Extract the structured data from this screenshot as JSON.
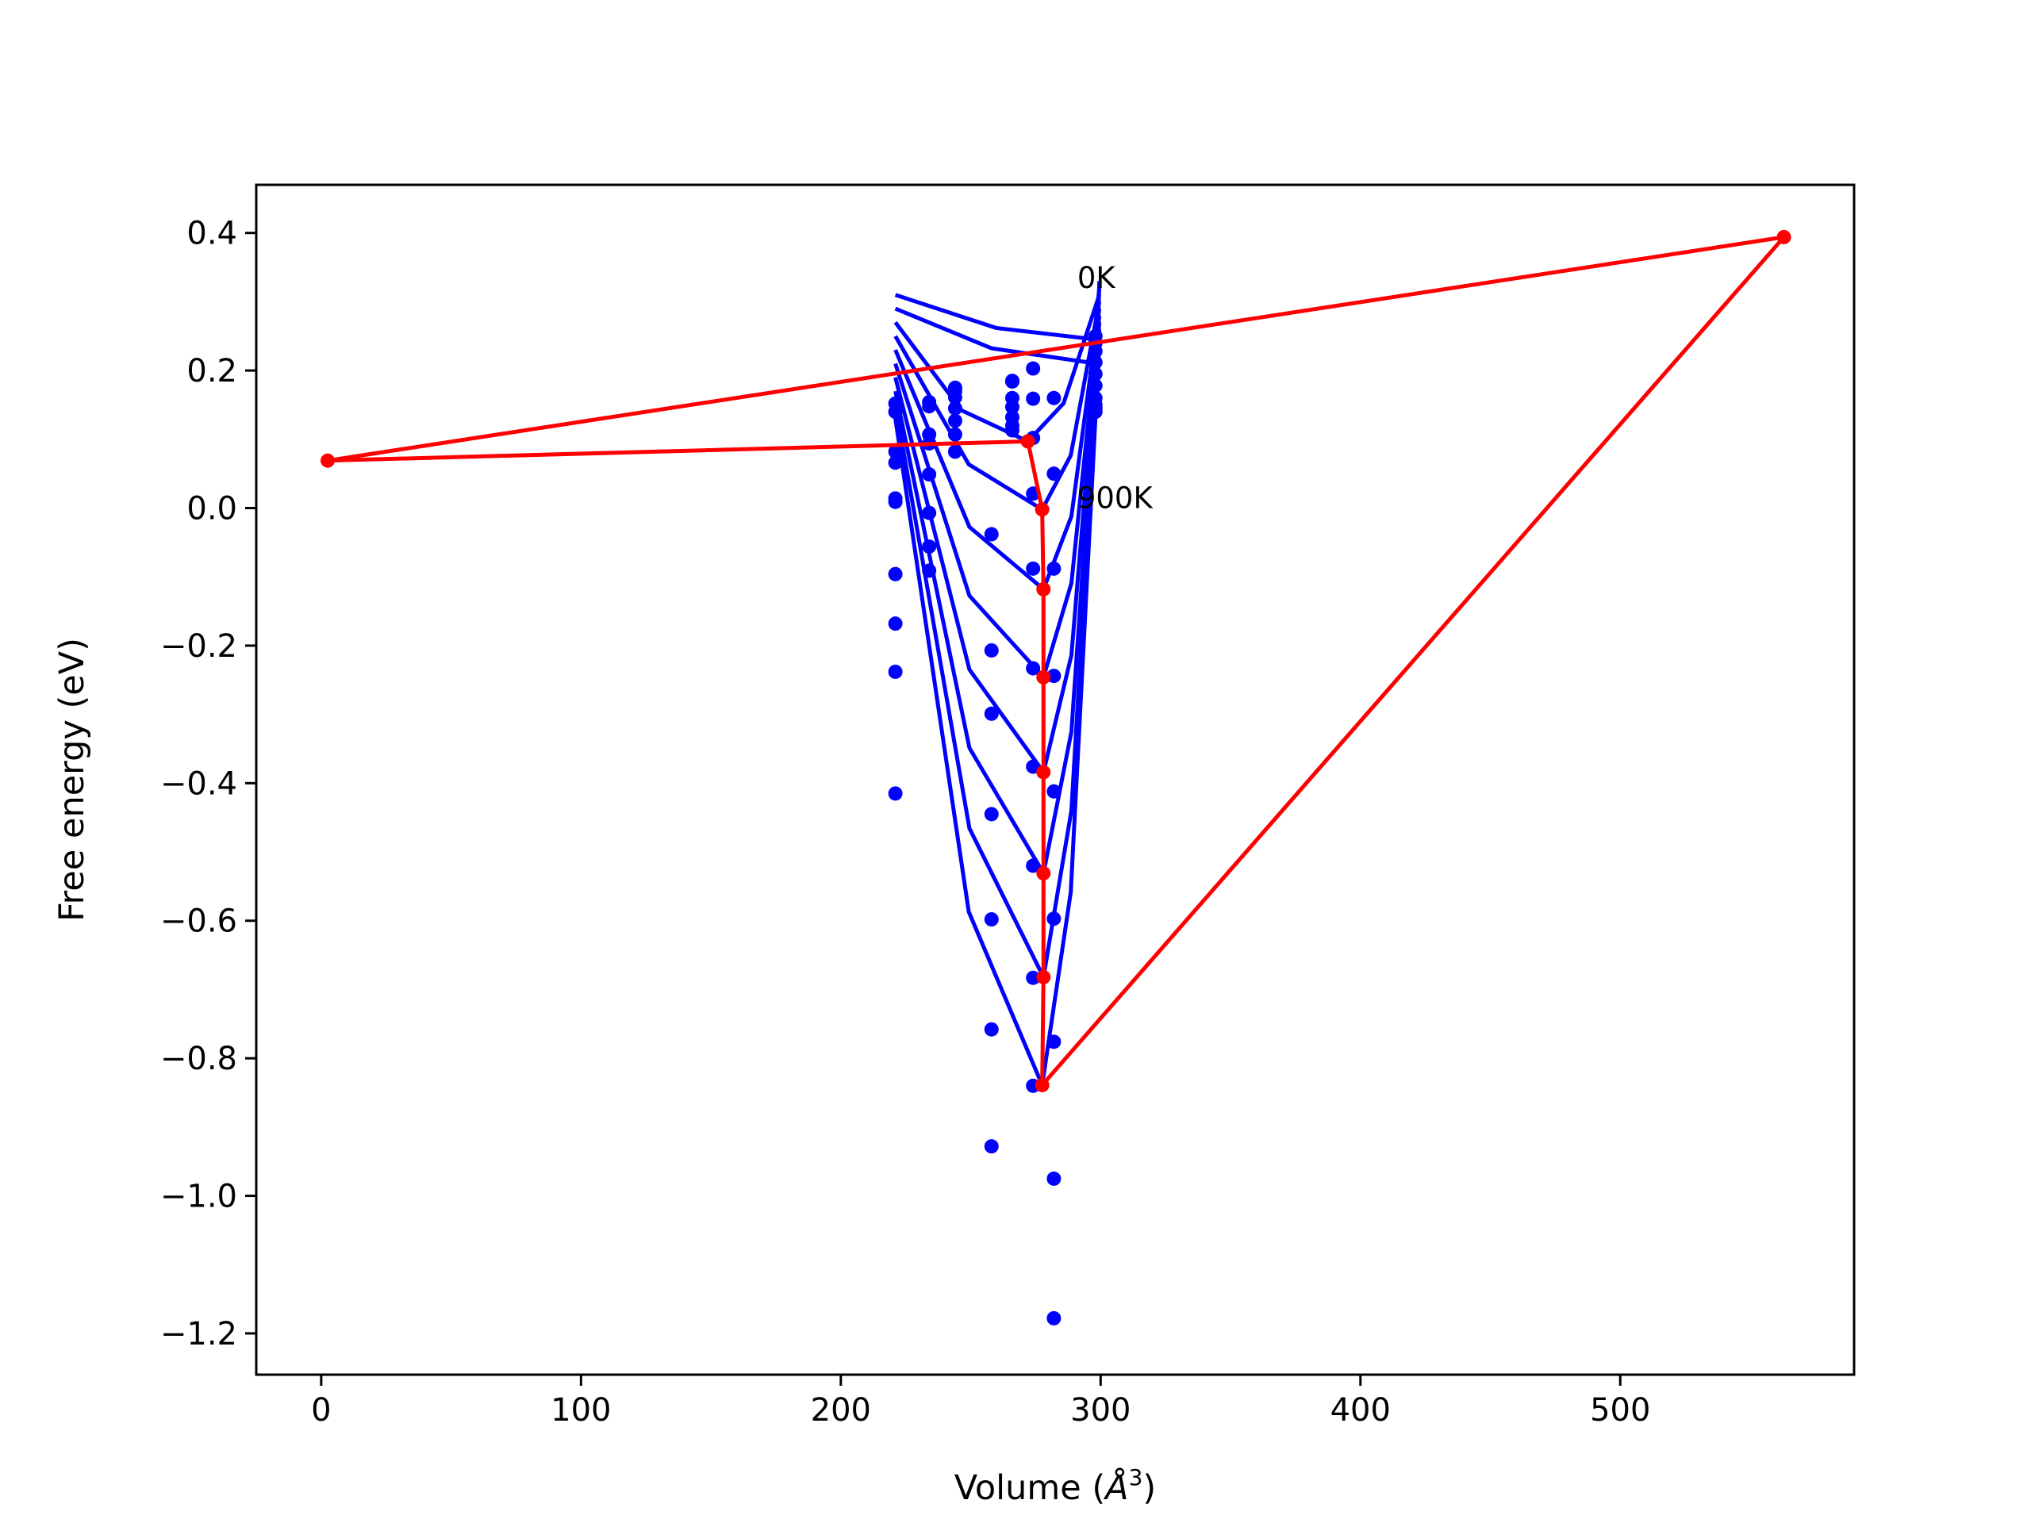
{
  "chart_data": {
    "type": "line",
    "title": "",
    "xlabel": "Volume (",
    "xlabel_symbol": "Å",
    "xlabel_exponent": "3",
    "xlabel_close": ")",
    "ylabel": "Free energy (eV)",
    "xlim": [
      -25,
      590
    ],
    "ylim": [
      -1.26,
      0.47
    ],
    "x_ticks": [
      0,
      100,
      200,
      300,
      400,
      500
    ],
    "y_ticks": [
      0.4,
      0.2,
      0.0,
      -0.2,
      -0.4,
      -0.6,
      -0.8,
      -1.0,
      -1.2
    ],
    "grid": false,
    "legend": "none",
    "annotations": [
      {
        "text": "0K",
        "x": 291,
        "y": 0.32
      },
      {
        "text": "900K",
        "x": 291,
        "y": 0.0
      }
    ],
    "colors": {
      "curves": "#0000ff",
      "points": "#0000ff",
      "min_line": "#ff0000"
    },
    "volumes": [
      221.0,
      234.0,
      244.0,
      258.0,
      266.0,
      274.0,
      282.0,
      298.0,
      299.5
    ],
    "temperatures_K": [
      0,
      100,
      200,
      300,
      400,
      500,
      600,
      700,
      800,
      900
    ],
    "points": [
      [
        0.082,
        0.14,
        0.152,
        0.066,
        0.014,
        0.009,
        -0.096,
        -0.168,
        -0.238,
        -0.415
      ],
      [
        null,
        null,
        0.154,
        0.148,
        0.107,
        0.094,
        0.049,
        -0.007,
        -0.056,
        -0.091
      ],
      [
        null,
        null,
        null,
        0.175,
        0.17,
        0.161,
        0.145,
        0.127,
        0.107,
        0.082
      ],
      [
        null,
        null,
        null,
        -0.038,
        -0.207,
        -0.299,
        -0.445,
        -0.598,
        -0.758,
        -0.928
      ],
      [
        null,
        null,
        null,
        0.185,
        0.184,
        0.16,
        0.147,
        0.132,
        0.12,
        0.113
      ],
      [
        0.203,
        0.159,
        0.102,
        0.021,
        -0.088,
        -0.233,
        -0.376,
        -0.52,
        -0.683,
        -0.84
      ],
      [
        0.16,
        0.05,
        -0.088,
        -0.244,
        -0.412,
        -0.597,
        -0.776,
        -0.975,
        -1.178,
        null
      ],
      [
        0.25,
        0.24,
        0.228,
        0.212,
        0.195,
        0.178,
        0.16,
        0.15,
        0.145,
        0.14
      ]
    ],
    "fit_min_volumes": [
      298.5,
      295.0,
      272.0,
      277.5,
      278.0,
      278.0,
      278.0,
      278.0,
      278.0,
      277.5
    ],
    "fit_min_energies": [
      0.245,
      0.212,
      0.097,
      -0.002,
      -0.118,
      -0.246,
      -0.384,
      -0.531,
      -0.682,
      -0.839
    ],
    "fit_curve_ends": {
      "left_x": 221.0,
      "left_y": [
        0.31,
        0.29,
        0.27,
        0.25,
        0.23,
        0.21,
        0.19,
        0.17,
        0.15,
        0.13
      ],
      "right_x": 299.5,
      "right_y": [
        0.33,
        0.32,
        0.31,
        0.3,
        0.29,
        0.28,
        0.27,
        0.26,
        0.25,
        0.24
      ]
    },
    "min_path": {
      "name": "",
      "x": [
        563,
        277.5,
        278.0,
        278.0,
        278.0,
        278.0,
        278.0,
        277.5,
        272.0,
        2.5
      ],
      "y": [
        0.394,
        -0.839,
        -0.682,
        -0.531,
        -0.384,
        -0.246,
        -0.118,
        -0.002,
        0.097,
        0.069
      ],
      "closing_segment_to": [
        563,
        0.394
      ]
    }
  }
}
